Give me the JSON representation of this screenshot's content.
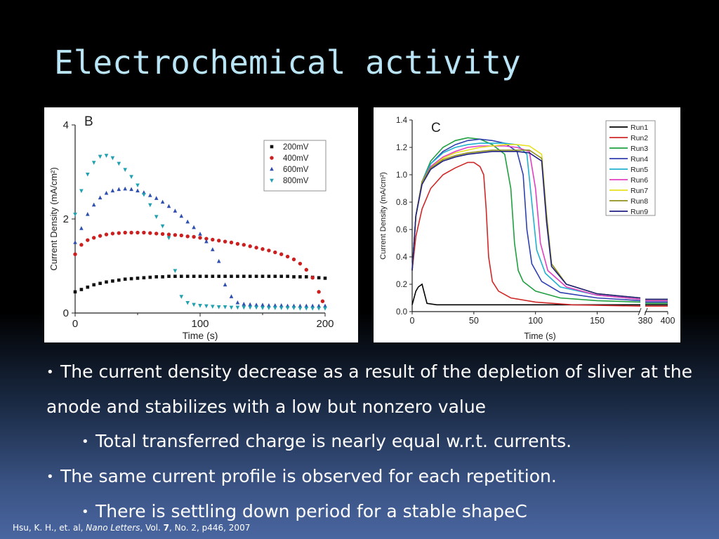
{
  "slide": {
    "title": "Electrochemical activity",
    "bullets": [
      {
        "level": 1,
        "text": "The current density decrease as a result of the depletion of sliver at the anode and stabilizes with a low but nonzero value"
      },
      {
        "level": 2,
        "text": "Total transferred charge is nearly equal  w.r.t. currents."
      },
      {
        "level": 1,
        "text": "The same current profile is observed for each repetition."
      },
      {
        "level": 2,
        "text": "There is settling down period for a stable shapeC"
      }
    ],
    "citation": {
      "authors": "Hsu, K. H., et. al, ",
      "journal": "Nano Letters",
      "vol_prefix": ", Vol. ",
      "volume": "7",
      "rest": ", No. 2, p446, 2007"
    }
  },
  "chart_data": [
    {
      "type": "scatter",
      "panel_label": "B",
      "xlabel": "Time (s)",
      "ylabel": "Current Density (mA/cm²)",
      "xlim": [
        0,
        200
      ],
      "ylim": [
        0,
        4
      ],
      "xticks": [
        0,
        100,
        200
      ],
      "yticks": [
        0,
        2,
        4
      ],
      "legend_position": "top-right",
      "series": [
        {
          "name": "200mV",
          "marker": "square",
          "color": "#111111",
          "x": [
            0,
            5,
            10,
            15,
            20,
            25,
            30,
            35,
            40,
            45,
            50,
            55,
            60,
            65,
            70,
            75,
            80,
            85,
            90,
            95,
            100,
            105,
            110,
            115,
            120,
            125,
            130,
            135,
            140,
            145,
            150,
            155,
            160,
            165,
            170,
            175,
            180,
            185,
            190,
            195,
            200
          ],
          "y": [
            0.45,
            0.5,
            0.55,
            0.6,
            0.63,
            0.66,
            0.68,
            0.7,
            0.72,
            0.73,
            0.74,
            0.75,
            0.76,
            0.77,
            0.77,
            0.78,
            0.78,
            0.78,
            0.78,
            0.78,
            0.78,
            0.78,
            0.78,
            0.78,
            0.78,
            0.78,
            0.78,
            0.78,
            0.78,
            0.78,
            0.78,
            0.78,
            0.78,
            0.78,
            0.78,
            0.77,
            0.77,
            0.77,
            0.76,
            0.75,
            0.74
          ]
        },
        {
          "name": "400mV",
          "marker": "circle",
          "color": "#cc2020",
          "x": [
            0,
            5,
            10,
            15,
            20,
            25,
            30,
            35,
            40,
            45,
            50,
            55,
            60,
            65,
            70,
            75,
            80,
            85,
            90,
            95,
            100,
            105,
            110,
            115,
            120,
            125,
            130,
            135,
            140,
            145,
            150,
            155,
            160,
            165,
            170,
            175,
            180,
            185,
            190,
            195,
            198
          ],
          "y": [
            1.25,
            1.45,
            1.55,
            1.6,
            1.64,
            1.67,
            1.69,
            1.7,
            1.71,
            1.71,
            1.71,
            1.71,
            1.7,
            1.69,
            1.68,
            1.67,
            1.66,
            1.65,
            1.63,
            1.62,
            1.6,
            1.58,
            1.56,
            1.54,
            1.52,
            1.5,
            1.47,
            1.45,
            1.42,
            1.39,
            1.36,
            1.33,
            1.29,
            1.25,
            1.2,
            1.14,
            1.05,
            0.92,
            0.75,
            0.45,
            0.25
          ]
        },
        {
          "name": "600mV",
          "marker": "triangle-up",
          "color": "#3050b0",
          "x": [
            0,
            5,
            10,
            15,
            20,
            25,
            30,
            35,
            40,
            45,
            50,
            55,
            60,
            65,
            70,
            75,
            80,
            85,
            90,
            95,
            100,
            105,
            110,
            115,
            120,
            125,
            130,
            135,
            140,
            145,
            150,
            155,
            160,
            165,
            170,
            175,
            180,
            185,
            190,
            195,
            200
          ],
          "y": [
            1.5,
            1.8,
            2.1,
            2.3,
            2.45,
            2.55,
            2.6,
            2.63,
            2.64,
            2.63,
            2.6,
            2.56,
            2.5,
            2.44,
            2.36,
            2.27,
            2.17,
            2.06,
            1.94,
            1.82,
            1.68,
            1.52,
            1.35,
            1.1,
            0.6,
            0.35,
            0.22,
            0.19,
            0.18,
            0.17,
            0.17,
            0.16,
            0.16,
            0.16,
            0.15,
            0.15,
            0.15,
            0.15,
            0.15,
            0.15,
            0.15
          ]
        },
        {
          "name": "800mV",
          "marker": "triangle-down",
          "color": "#20a0b0",
          "x": [
            0,
            5,
            10,
            15,
            20,
            25,
            30,
            35,
            40,
            45,
            50,
            55,
            60,
            65,
            70,
            75,
            80,
            85,
            90,
            95,
            100,
            105,
            110,
            115,
            120,
            125,
            130,
            135,
            140,
            145,
            150,
            155,
            160,
            165,
            170,
            175,
            180,
            185,
            190,
            195,
            200
          ],
          "y": [
            2.1,
            2.6,
            2.95,
            3.2,
            3.33,
            3.35,
            3.3,
            3.18,
            3.05,
            2.9,
            2.72,
            2.52,
            2.3,
            2.05,
            1.85,
            1.6,
            0.9,
            0.35,
            0.22,
            0.18,
            0.16,
            0.15,
            0.14,
            0.13,
            0.13,
            0.12,
            0.12,
            0.12,
            0.12,
            0.12,
            0.11,
            0.11,
            0.11,
            0.11,
            0.11,
            0.11,
            0.1,
            0.1,
            0.1,
            0.1,
            0.1
          ]
        }
      ]
    },
    {
      "type": "line",
      "panel_label": "C",
      "xlabel": "Time (s)",
      "ylabel": "Current Density (mA/cm²)",
      "ylim": [
        0,
        1.4
      ],
      "xticks": [
        "0",
        "50",
        "100",
        "150",
        "380",
        "400"
      ],
      "yticks": [
        "0.0",
        "0.2",
        "0.4",
        "0.6",
        "0.8",
        "1.0",
        "1.2",
        "1.4"
      ],
      "axis_break_between": [
        150,
        380
      ],
      "legend_position": "top-right",
      "series": [
        {
          "name": "Run1",
          "color": "#000000",
          "x": [
            0,
            3,
            5,
            8,
            12,
            20,
            40,
            60,
            100,
            150,
            185,
            380,
            400
          ],
          "y": [
            0.05,
            0.15,
            0.18,
            0.2,
            0.06,
            0.05,
            0.05,
            0.05,
            0.05,
            0.05,
            0.05,
            0.05,
            0.05
          ]
        },
        {
          "name": "Run2",
          "color": "#d02828",
          "x": [
            0,
            3,
            8,
            15,
            25,
            35,
            45,
            50,
            55,
            58,
            60,
            62,
            65,
            70,
            80,
            100,
            130,
            185,
            380,
            400
          ],
          "y": [
            0.3,
            0.55,
            0.75,
            0.9,
            1.0,
            1.05,
            1.09,
            1.09,
            1.06,
            1.0,
            0.75,
            0.4,
            0.22,
            0.15,
            0.1,
            0.07,
            0.05,
            0.04,
            0.04,
            0.04
          ]
        },
        {
          "name": "Run3",
          "color": "#20a040",
          "x": [
            0,
            3,
            8,
            15,
            25,
            35,
            45,
            55,
            65,
            75,
            80,
            83,
            86,
            90,
            100,
            120,
            150,
            185,
            380,
            400
          ],
          "y": [
            0.3,
            0.7,
            0.95,
            1.1,
            1.2,
            1.25,
            1.27,
            1.26,
            1.22,
            1.15,
            0.9,
            0.5,
            0.3,
            0.22,
            0.15,
            0.1,
            0.08,
            0.07,
            0.06,
            0.06
          ]
        },
        {
          "name": "Run4",
          "color": "#3040b0",
          "x": [
            0,
            3,
            8,
            15,
            25,
            35,
            45,
            55,
            65,
            75,
            85,
            90,
            93,
            97,
            105,
            120,
            150,
            185,
            380,
            400
          ],
          "y": [
            0.3,
            0.7,
            0.95,
            1.08,
            1.17,
            1.22,
            1.25,
            1.26,
            1.25,
            1.23,
            1.17,
            1.0,
            0.6,
            0.35,
            0.22,
            0.14,
            0.1,
            0.08,
            0.07,
            0.07
          ]
        },
        {
          "name": "Run5",
          "color": "#20b0d0",
          "x": [
            0,
            3,
            8,
            15,
            25,
            35,
            45,
            55,
            65,
            75,
            85,
            93,
            97,
            101,
            108,
            120,
            150,
            185,
            380,
            400
          ],
          "y": [
            0.3,
            0.7,
            0.95,
            1.08,
            1.16,
            1.2,
            1.22,
            1.23,
            1.23,
            1.23,
            1.22,
            1.15,
            0.8,
            0.45,
            0.28,
            0.18,
            0.12,
            0.09,
            0.08,
            0.08
          ]
        },
        {
          "name": "Run6",
          "color": "#e040c0",
          "x": [
            0,
            3,
            8,
            15,
            25,
            35,
            45,
            55,
            65,
            75,
            85,
            95,
            100,
            104,
            110,
            125,
            150,
            185,
            380,
            400
          ],
          "y": [
            0.3,
            0.7,
            0.95,
            1.06,
            1.13,
            1.17,
            1.2,
            1.21,
            1.21,
            1.21,
            1.2,
            1.17,
            0.9,
            0.5,
            0.3,
            0.18,
            0.12,
            0.09,
            0.08,
            0.08
          ]
        },
        {
          "name": "Run7",
          "color": "#e8e020",
          "x": [
            0,
            3,
            8,
            15,
            25,
            35,
            45,
            55,
            65,
            75,
            85,
            95,
            105,
            109,
            113,
            125,
            150,
            185,
            380,
            400
          ],
          "y": [
            0.3,
            0.7,
            0.95,
            1.05,
            1.12,
            1.16,
            1.18,
            1.2,
            1.21,
            1.22,
            1.22,
            1.21,
            1.15,
            0.7,
            0.35,
            0.2,
            0.13,
            0.1,
            0.09,
            0.09
          ]
        },
        {
          "name": "Run8",
          "color": "#909020",
          "x": [
            0,
            3,
            8,
            15,
            25,
            35,
            45,
            55,
            65,
            75,
            85,
            95,
            105,
            109,
            113,
            125,
            150,
            185,
            380,
            400
          ],
          "y": [
            0.3,
            0.7,
            0.95,
            1.05,
            1.11,
            1.14,
            1.16,
            1.17,
            1.18,
            1.18,
            1.18,
            1.18,
            1.12,
            0.7,
            0.35,
            0.2,
            0.13,
            0.1,
            0.09,
            0.09
          ]
        },
        {
          "name": "Run9",
          "color": "#202080",
          "x": [
            0,
            3,
            8,
            15,
            25,
            35,
            45,
            55,
            65,
            75,
            85,
            95,
            105,
            109,
            113,
            125,
            150,
            185,
            380,
            400
          ],
          "y": [
            0.3,
            0.7,
            0.93,
            1.04,
            1.1,
            1.13,
            1.15,
            1.16,
            1.17,
            1.17,
            1.17,
            1.16,
            1.1,
            0.65,
            0.33,
            0.2,
            0.13,
            0.1,
            0.09,
            0.09
          ]
        }
      ]
    }
  ]
}
